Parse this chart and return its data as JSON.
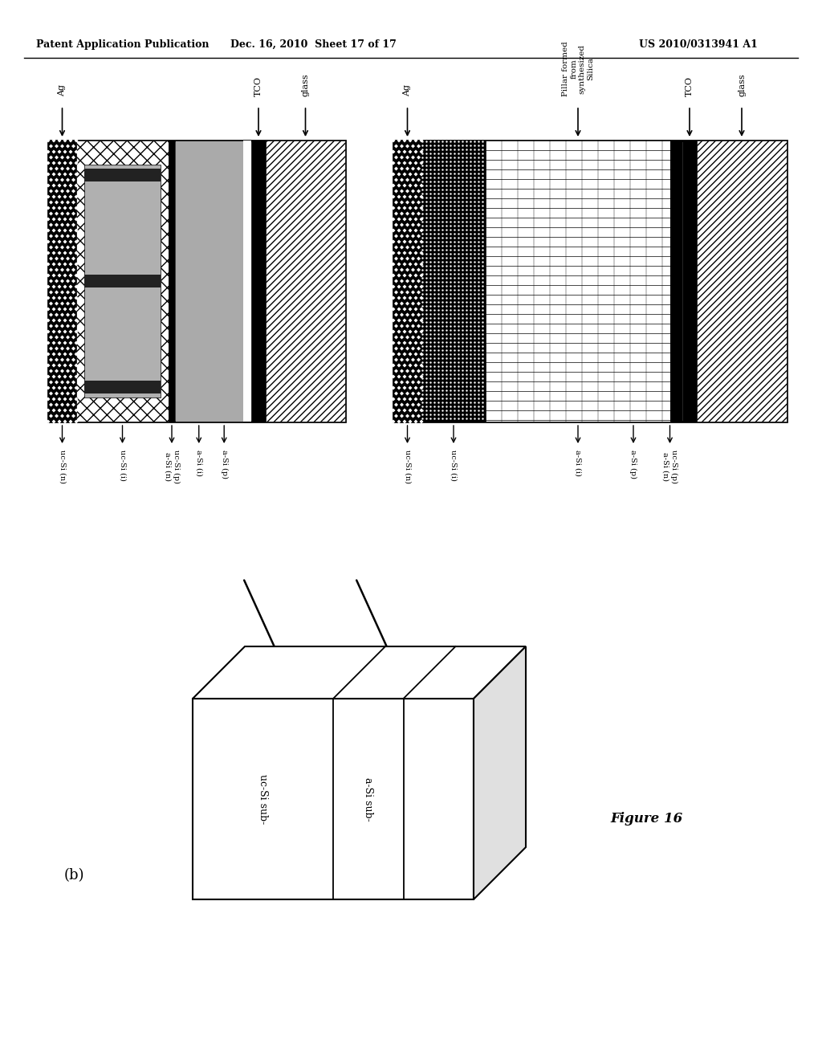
{
  "header_left": "Patent Application Publication",
  "header_mid": "Dec. 16, 2010  Sheet 17 of 17",
  "header_right": "US 2010/0313941 A1",
  "fig_label": "Figure 16",
  "part_b_label": "(b)",
  "bg_color": "#ffffff",
  "text_color": "#000000"
}
